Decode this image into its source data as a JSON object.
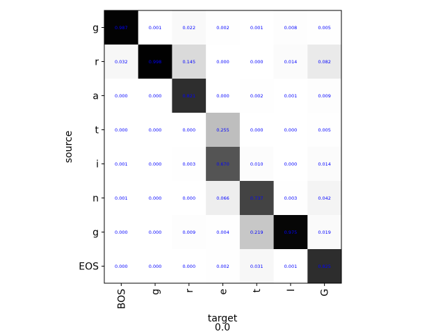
{
  "chart_data": {
    "type": "heatmap",
    "title": "",
    "xlabel": "target",
    "ylabel": "source",
    "caption": "0.0",
    "x_categories": [
      "BOS",
      "g",
      "r",
      "e",
      "t",
      "I",
      "G"
    ],
    "y_categories": [
      "g",
      "r",
      "a",
      "t",
      "i",
      "n",
      "g",
      "EOS"
    ],
    "colormap": "Greys",
    "value_range": [
      0,
      1
    ],
    "cell_label_color": "#0000ff",
    "values": [
      [
        0.987,
        0.001,
        0.022,
        0.002,
        0.001,
        0.008,
        0.005
      ],
      [
        0.032,
        0.998,
        0.145,
        0.0,
        0.0,
        0.014,
        0.082
      ],
      [
        0.0,
        0.0,
        0.821,
        0.0,
        0.002,
        0.001,
        0.009
      ],
      [
        0.0,
        0.0,
        0.0,
        0.255,
        0.0,
        0.0,
        0.005
      ],
      [
        0.001,
        0.0,
        0.003,
        0.67,
        0.01,
        0.0,
        0.014
      ],
      [
        0.001,
        0.0,
        0.0,
        0.066,
        0.737,
        0.003,
        0.042
      ],
      [
        0.0,
        0.0,
        0.009,
        0.004,
        0.219,
        0.975,
        0.019
      ],
      [
        0.0,
        0.0,
        0.0,
        0.002,
        0.031,
        0.001,
        0.825
      ]
    ]
  }
}
